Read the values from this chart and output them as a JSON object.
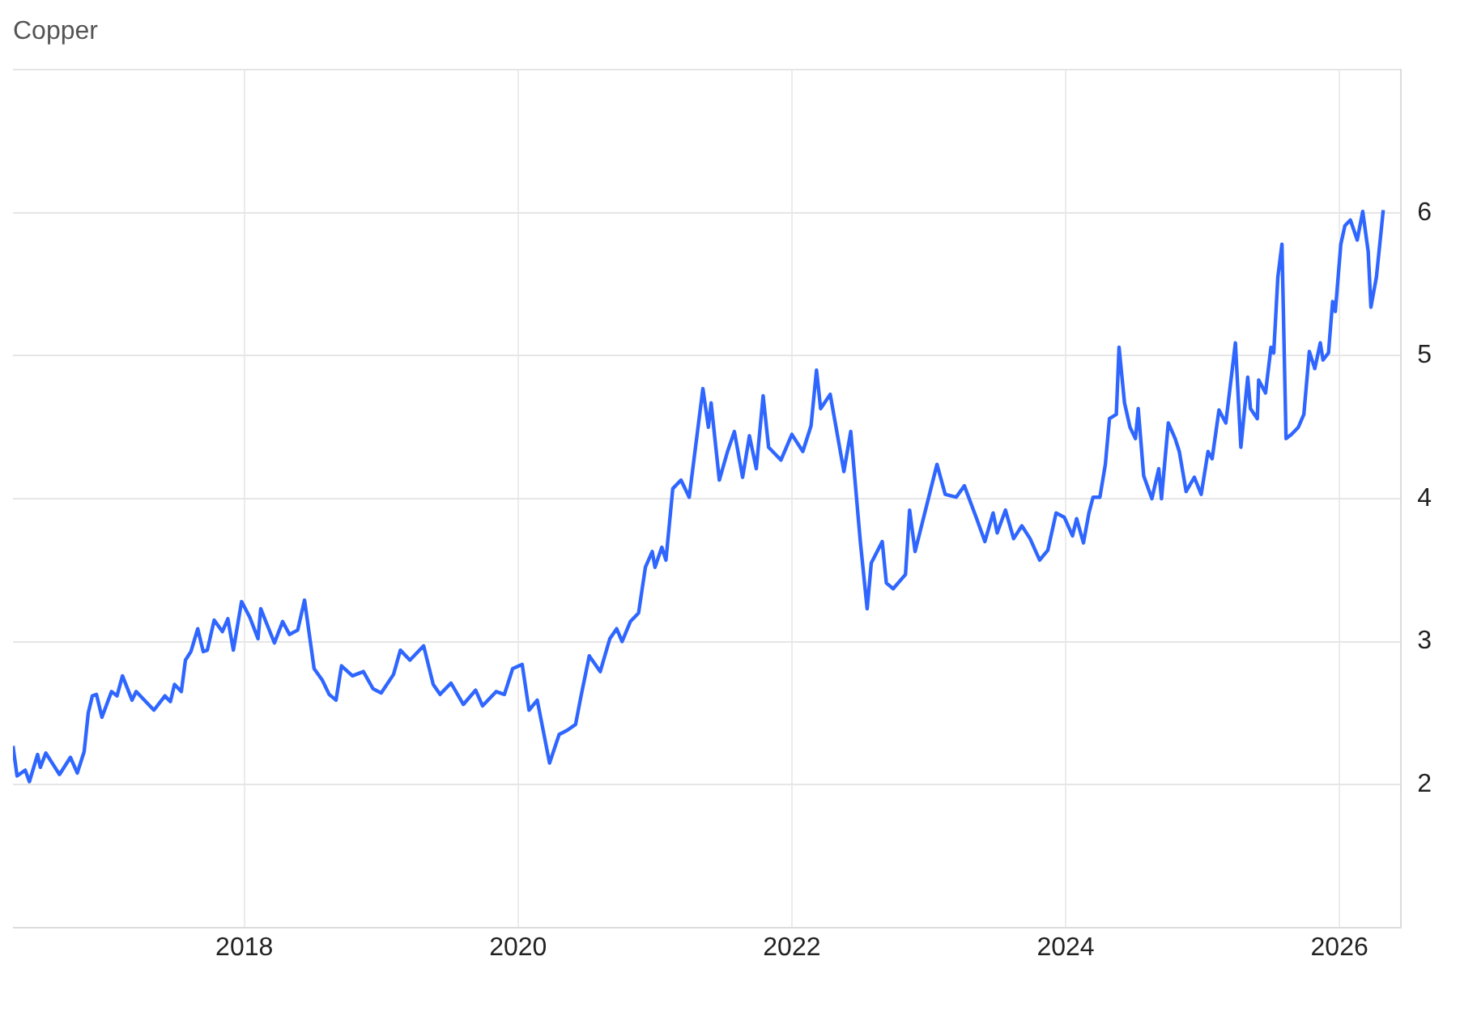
{
  "chart_data": {
    "type": "line",
    "title": "Copper",
    "legend": false,
    "grid": true,
    "marker": "none",
    "xlim": [
      2016.31,
      2026.45
    ],
    "xticks": [
      2018,
      2020,
      2022,
      2024,
      2026
    ],
    "ylim": [
      1,
      7
    ],
    "yticks": [
      {
        "value": 1,
        "label": null
      },
      2,
      3,
      4,
      5,
      6,
      {
        "value": 7,
        "label": null
      }
    ],
    "series": [
      {
        "color": "#2f66ff",
        "x": [
          2016.31,
          2016.34,
          2016.4,
          2016.43,
          2016.49,
          2016.51,
          2016.55,
          2016.61,
          2016.65,
          2016.73,
          2016.78,
          2016.83,
          2016.86,
          2016.89,
          2016.92,
          2016.96,
          2017.03,
          2017.07,
          2017.11,
          2017.18,
          2017.21,
          2017.34,
          2017.42,
          2017.46,
          2017.49,
          2017.54,
          2017.57,
          2017.61,
          2017.66,
          2017.7,
          2017.73,
          2017.78,
          2017.84,
          2017.88,
          2017.92,
          2017.98,
          2018.04,
          2018.1,
          2018.12,
          2018.22,
          2018.28,
          2018.33,
          2018.39,
          2018.44,
          2018.51,
          2018.57,
          2018.62,
          2018.67,
          2018.71,
          2018.79,
          2018.87,
          2018.94,
          2019.0,
          2019.09,
          2019.14,
          2019.21,
          2019.31,
          2019.38,
          2019.43,
          2019.51,
          2019.6,
          2019.69,
          2019.74,
          2019.84,
          2019.9,
          2019.96,
          2020.03,
          2020.08,
          2020.14,
          2020.23,
          2020.3,
          2020.36,
          2020.42,
          2020.46,
          2020.52,
          2020.6,
          2020.67,
          2020.72,
          2020.76,
          2020.82,
          2020.88,
          2020.93,
          2020.98,
          2021.0,
          2021.05,
          2021.08,
          2021.13,
          2021.19,
          2021.25,
          2021.35,
          2021.39,
          2021.41,
          2021.47,
          2021.53,
          2021.58,
          2021.64,
          2021.69,
          2021.74,
          2021.79,
          2021.83,
          2021.92,
          2022.0,
          2022.08,
          2022.14,
          2022.18,
          2022.21,
          2022.28,
          2022.38,
          2022.43,
          2022.5,
          2022.55,
          2022.58,
          2022.66,
          2022.69,
          2022.74,
          2022.83,
          2022.86,
          2022.9,
          2023.06,
          2023.12,
          2023.2,
          2023.26,
          2023.35,
          2023.41,
          2023.47,
          2023.5,
          2023.56,
          2023.62,
          2023.68,
          2023.74,
          2023.81,
          2023.87,
          2023.93,
          2023.99,
          2024.05,
          2024.08,
          2024.13,
          2024.17,
          2024.2,
          2024.25,
          2024.29,
          2024.32,
          2024.37,
          2024.39,
          2024.43,
          2024.47,
          2024.51,
          2024.53,
          2024.57,
          2024.63,
          2024.68,
          2024.7,
          2024.75,
          2024.8,
          2024.83,
          2024.88,
          2024.94,
          2024.99,
          2025.04,
          2025.07,
          2025.12,
          2025.17,
          2025.24,
          2025.28,
          2025.33,
          2025.35,
          2025.4,
          2025.41,
          2025.46,
          2025.5,
          2025.52,
          2025.55,
          2025.58,
          2025.61,
          2025.65,
          2025.7,
          2025.74,
          2025.78,
          2025.82,
          2025.86,
          2025.88,
          2025.92,
          2025.95,
          2025.97,
          2026.01,
          2026.04,
          2026.08,
          2026.13,
          2026.17,
          2026.21,
          2026.23,
          2026.27,
          2026.32
        ],
        "values": [
          2.27,
          2.06,
          2.1,
          2.02,
          2.21,
          2.12,
          2.22,
          2.13,
          2.07,
          2.19,
          2.08,
          2.23,
          2.5,
          2.62,
          2.63,
          2.47,
          2.65,
          2.62,
          2.76,
          2.59,
          2.65,
          2.52,
          2.62,
          2.58,
          2.7,
          2.65,
          2.87,
          2.93,
          3.09,
          2.93,
          2.94,
          3.15,
          3.07,
          3.16,
          2.94,
          3.28,
          3.17,
          3.02,
          3.23,
          2.99,
          3.14,
          3.05,
          3.08,
          3.29,
          2.81,
          2.73,
          2.63,
          2.59,
          2.83,
          2.76,
          2.79,
          2.67,
          2.64,
          2.77,
          2.94,
          2.87,
          2.97,
          2.7,
          2.63,
          2.71,
          2.56,
          2.66,
          2.55,
          2.65,
          2.63,
          2.81,
          2.84,
          2.52,
          2.59,
          2.15,
          2.35,
          2.38,
          2.42,
          2.62,
          2.9,
          2.79,
          3.02,
          3.09,
          3.0,
          3.14,
          3.2,
          3.52,
          3.63,
          3.52,
          3.66,
          3.57,
          4.07,
          4.13,
          4.01,
          4.77,
          4.5,
          4.67,
          4.13,
          4.33,
          4.47,
          4.15,
          4.44,
          4.21,
          4.72,
          4.36,
          4.27,
          4.45,
          4.33,
          4.51,
          4.9,
          4.63,
          4.73,
          4.19,
          4.47,
          3.7,
          3.23,
          3.55,
          3.7,
          3.41,
          3.37,
          3.47,
          3.92,
          3.63,
          4.24,
          4.03,
          4.01,
          4.09,
          3.86,
          3.7,
          3.9,
          3.76,
          3.92,
          3.72,
          3.81,
          3.72,
          3.57,
          3.64,
          3.9,
          3.87,
          3.74,
          3.86,
          3.69,
          3.9,
          4.01,
          4.01,
          4.24,
          4.56,
          4.59,
          5.06,
          4.67,
          4.5,
          4.42,
          4.63,
          4.16,
          4.0,
          4.21,
          4.0,
          4.53,
          4.42,
          4.33,
          4.05,
          4.15,
          4.03,
          4.33,
          4.28,
          4.62,
          4.53,
          5.09,
          4.36,
          4.85,
          4.63,
          4.56,
          4.83,
          4.74,
          5.06,
          5.02,
          5.55,
          5.78,
          4.42,
          4.45,
          4.5,
          4.59,
          5.03,
          4.91,
          5.09,
          4.97,
          5.02,
          5.38,
          5.31,
          5.78,
          5.91,
          5.95,
          5.81,
          6.01,
          5.73,
          5.34,
          5.55,
          6.02
        ]
      }
    ]
  }
}
